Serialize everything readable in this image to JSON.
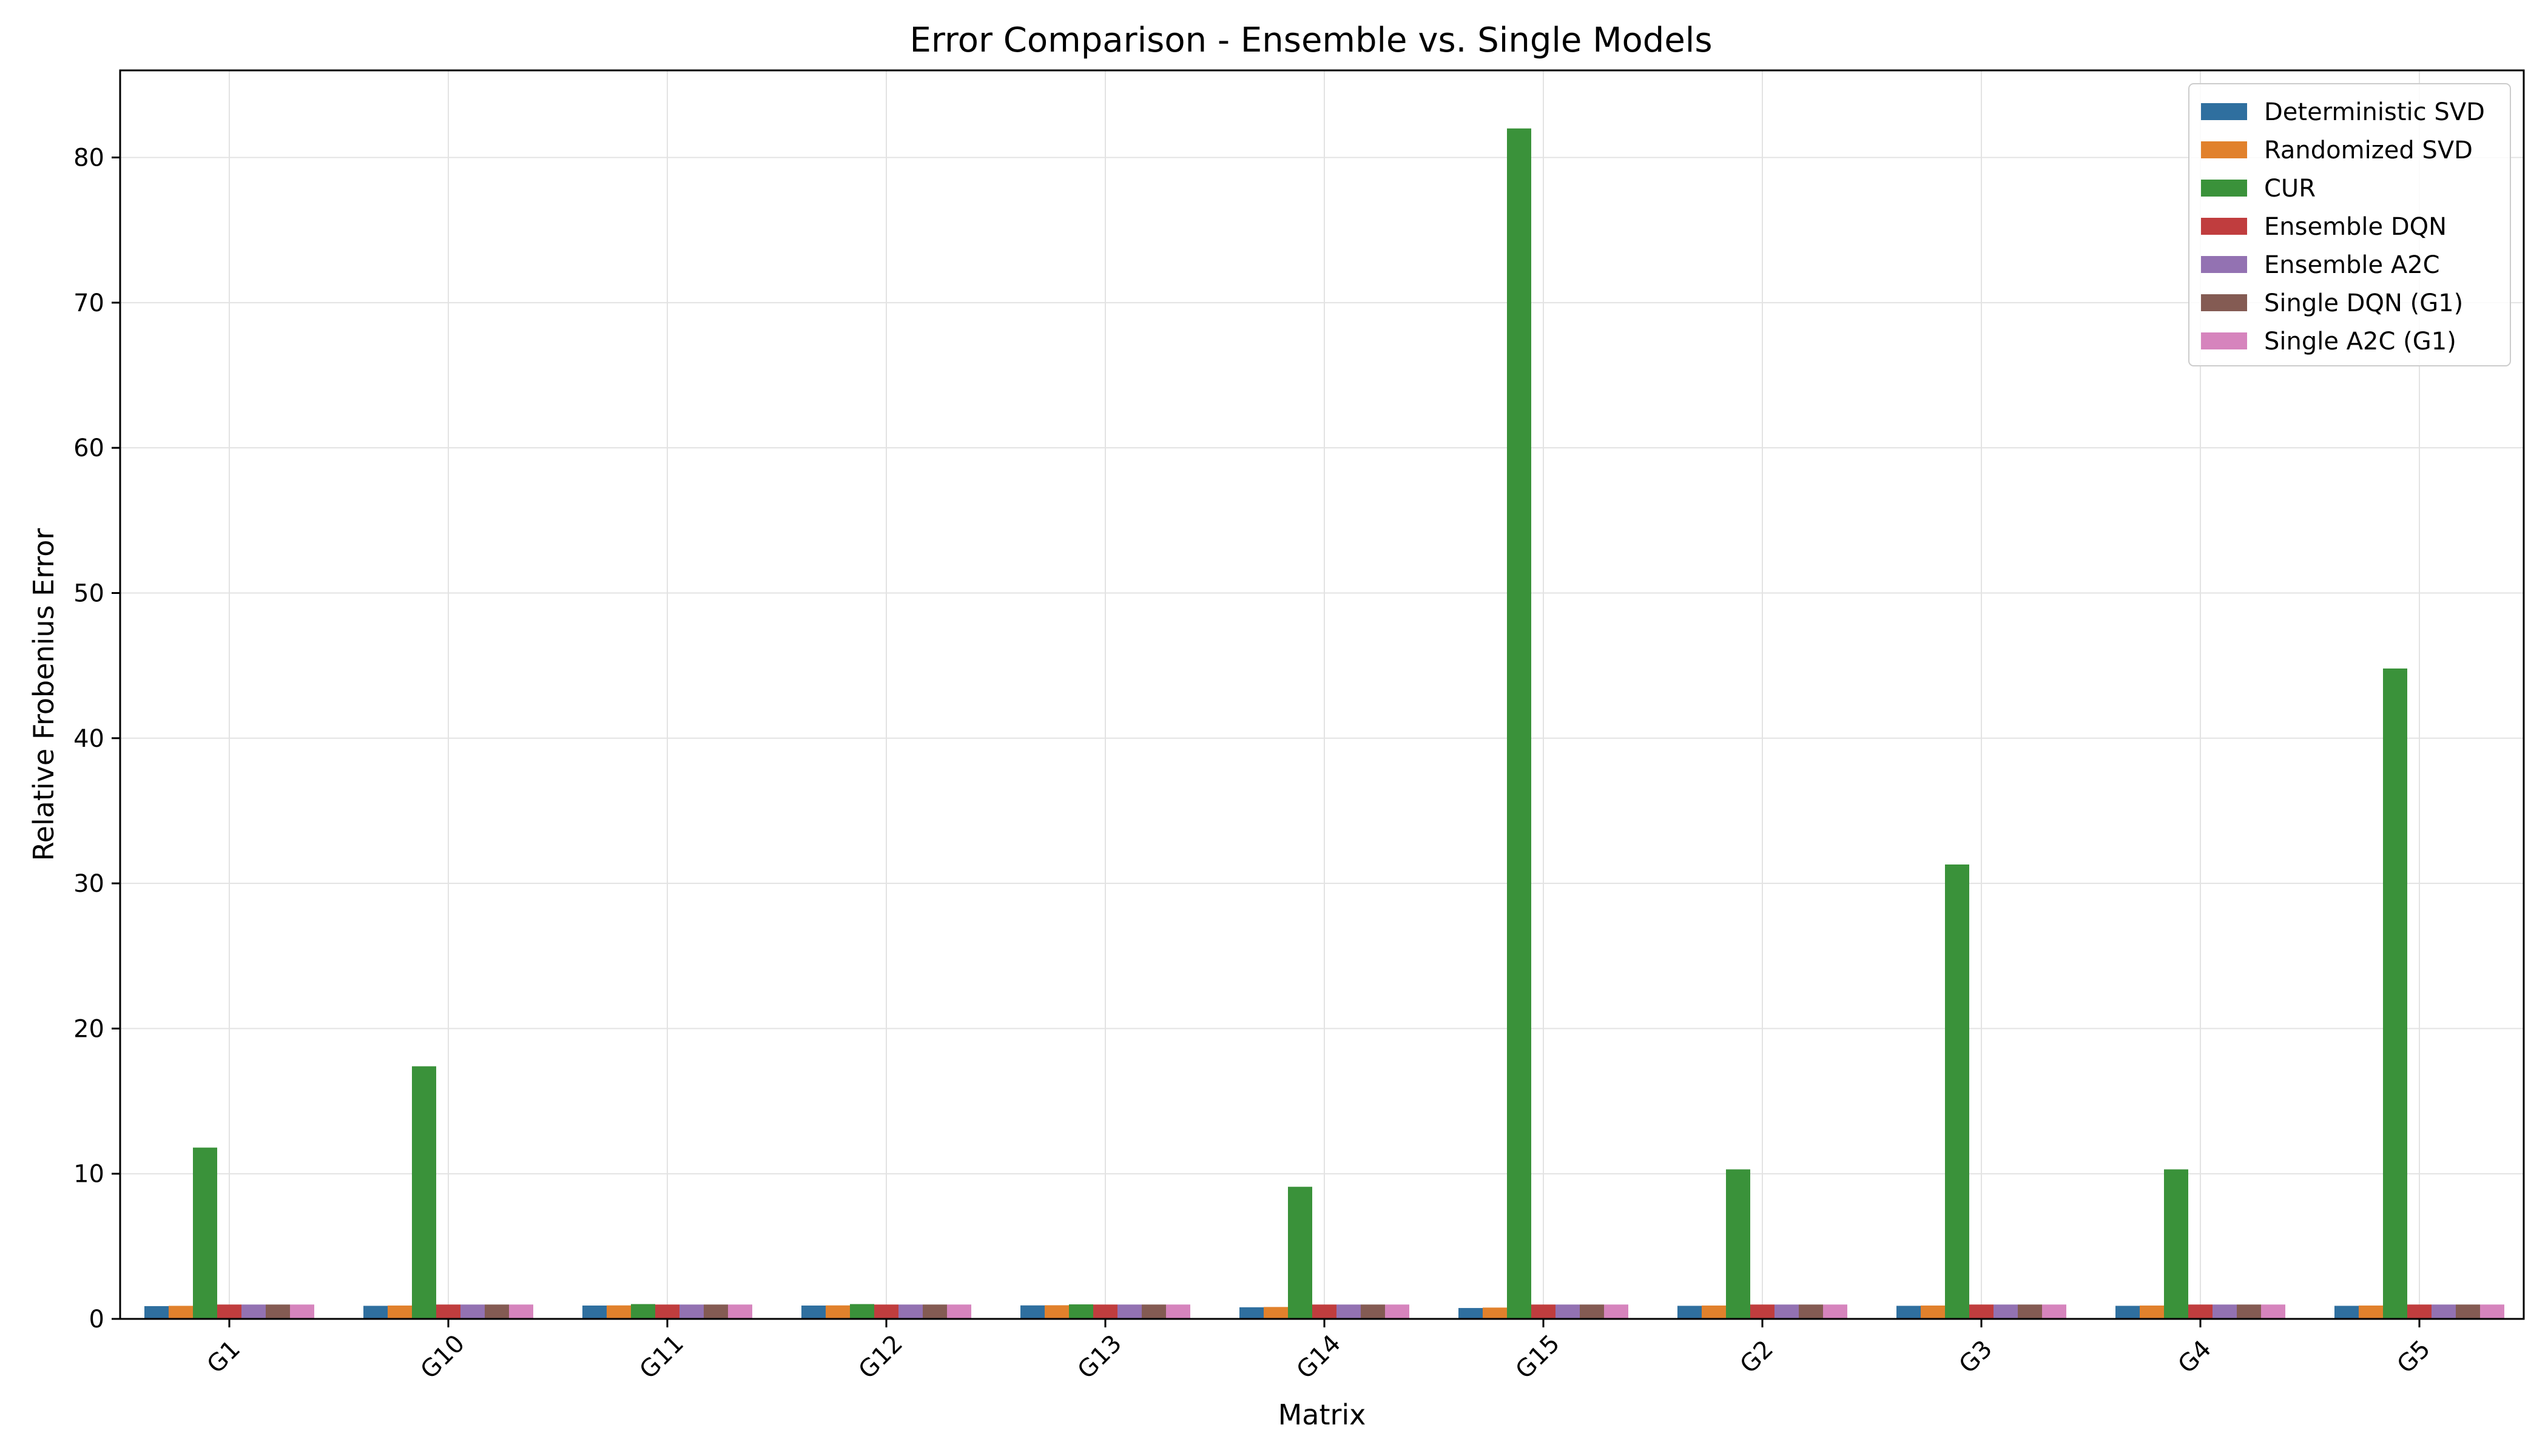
{
  "chart_data": {
    "type": "bar",
    "title": "Error Comparison - Ensemble vs. Single Models",
    "xlabel": "Matrix",
    "ylabel": "Relative Frobenius Error",
    "ylim": [
      0,
      86
    ],
    "yticks": [
      0,
      10,
      20,
      30,
      40,
      50,
      60,
      70,
      80
    ],
    "grid": true,
    "legend_position": "top-right",
    "categories": [
      "G1",
      "G10",
      "G11",
      "G12",
      "G13",
      "G14",
      "G15",
      "G2",
      "G3",
      "G4",
      "G5"
    ],
    "series": [
      {
        "name": "Deterministic SVD",
        "color": "#2f6f9f",
        "values": [
          0.88,
          0.9,
          0.92,
          0.92,
          0.93,
          0.8,
          0.75,
          0.9,
          0.9,
          0.9,
          0.9
        ]
      },
      {
        "name": "Randomized SVD",
        "color": "#e1812c",
        "values": [
          0.9,
          0.92,
          0.93,
          0.93,
          0.94,
          0.82,
          0.78,
          0.92,
          0.92,
          0.92,
          0.92
        ]
      },
      {
        "name": "CUR",
        "color": "#3a923a",
        "values": [
          11.8,
          17.4,
          1.02,
          1.02,
          1.0,
          9.1,
          82.0,
          10.3,
          31.3,
          10.3,
          44.8
        ]
      },
      {
        "name": "Ensemble DQN",
        "color": "#c03d3e",
        "values": [
          0.99,
          0.99,
          0.99,
          0.99,
          0.99,
          0.99,
          0.99,
          0.99,
          0.99,
          0.99,
          0.99
        ]
      },
      {
        "name": "Ensemble A2C",
        "color": "#9372b2",
        "values": [
          0.99,
          0.99,
          0.99,
          0.99,
          0.99,
          0.99,
          0.99,
          0.99,
          0.99,
          0.99,
          0.99
        ]
      },
      {
        "name": "Single DQN (G1)",
        "color": "#845b53",
        "values": [
          0.99,
          0.99,
          0.99,
          0.99,
          0.99,
          0.99,
          0.99,
          0.99,
          0.99,
          0.99,
          0.99
        ]
      },
      {
        "name": "Single A2C (G1)",
        "color": "#d684bd",
        "values": [
          0.99,
          0.99,
          0.99,
          0.99,
          0.99,
          0.99,
          0.99,
          0.99,
          0.99,
          0.99,
          0.99
        ]
      }
    ]
  }
}
